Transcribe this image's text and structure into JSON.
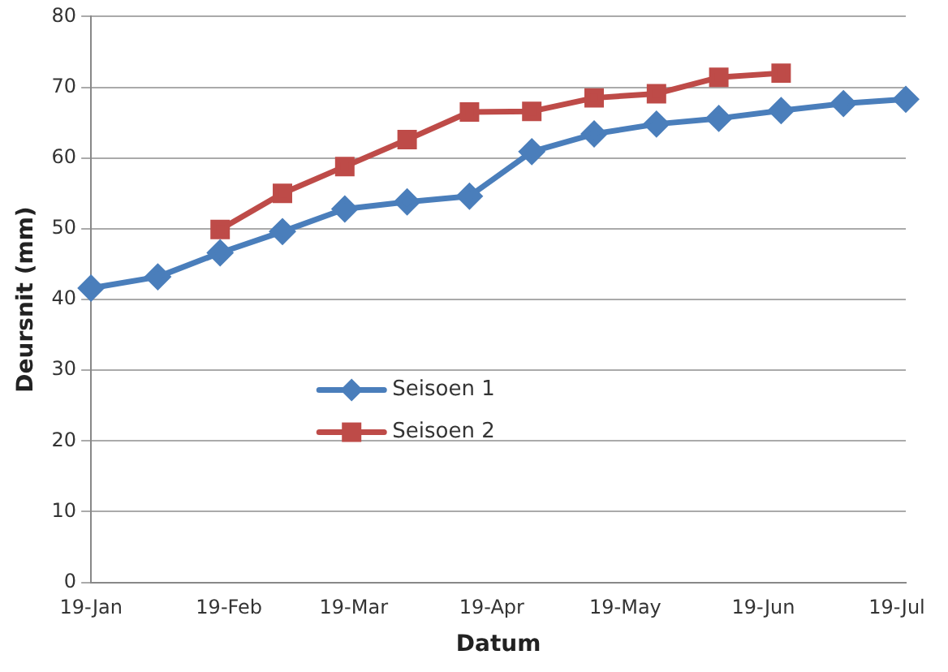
{
  "chart_data": {
    "type": "line",
    "xlabel": "Datum",
    "ylabel": "Deursnit (mm)",
    "xlim": [
      "--01-19",
      "--07-21"
    ],
    "xticks": [
      {
        "value": "--01-19",
        "label": "19-Jan"
      },
      {
        "value": "--02-19",
        "label": "19-Feb"
      },
      {
        "value": "--03-19",
        "label": "19-Mar"
      },
      {
        "value": "--04-19",
        "label": "19-Apr"
      },
      {
        "value": "--05-19",
        "label": "19-May"
      },
      {
        "value": "--06-19",
        "label": "19-Jun"
      },
      {
        "value": "--07-19",
        "label": "19-Jul"
      }
    ],
    "ylim": [
      0,
      80
    ],
    "yticks": [
      0,
      10,
      20,
      30,
      40,
      50,
      60,
      70,
      80
    ],
    "grid": "y",
    "legend": "bottom left",
    "series": [
      {
        "name": "Seisoen 1",
        "color": "#4a7ebb",
        "marker": "diamond",
        "x": [
          "--01-19",
          "--02-03",
          "--02-17",
          "--03-03",
          "--03-17",
          "--03-31",
          "--04-14",
          "--04-28",
          "--05-12",
          "--05-26",
          "--06-09",
          "--06-23",
          "--07-07",
          "--07-21"
        ],
        "values": [
          41.6,
          43.2,
          46.6,
          49.6,
          52.8,
          53.8,
          54.6,
          60.9,
          63.4,
          64.8,
          65.6,
          66.7,
          67.7,
          68.3
        ]
      },
      {
        "name": "Seisoen 2",
        "color": "#be4b48",
        "marker": "square",
        "x": [
          "--02-17",
          "--03-03",
          "--03-17",
          "--03-31",
          "--04-14",
          "--04-28",
          "--05-12",
          "--05-26",
          "--06-09",
          "--06-23"
        ],
        "values": [
          49.9,
          55.0,
          58.8,
          62.6,
          66.5,
          66.6,
          68.5,
          69.1,
          71.4,
          72.0
        ]
      }
    ]
  }
}
